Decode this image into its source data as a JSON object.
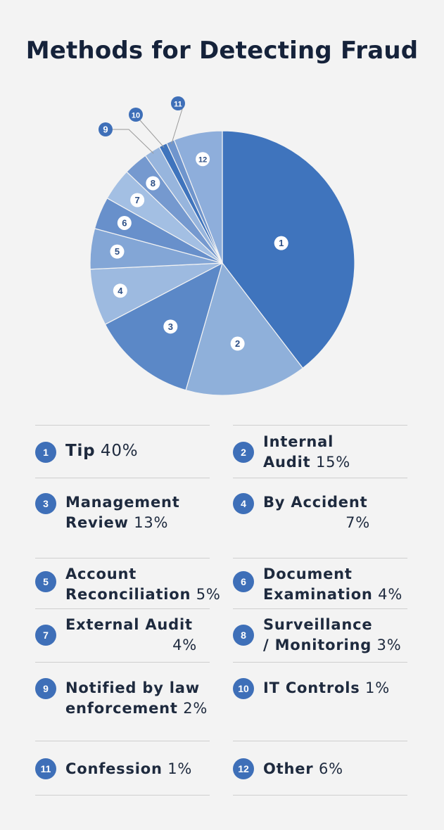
{
  "title": "Methods for Detecting Fraud",
  "colors": {
    "badge": "#3e6fb8",
    "label_text": "#1e2a3e",
    "background": "#f3f3f3"
  },
  "chart_data": {
    "type": "pie",
    "title": "Methods for Detecting Fraud",
    "slices": [
      {
        "label": "1",
        "name": "Tip",
        "value": 40,
        "color": "#3f74bd"
      },
      {
        "label": "2",
        "name": "Internal Audit",
        "value": 15,
        "color": "#8fb0da"
      },
      {
        "label": "3",
        "name": "Management Review",
        "value": 13,
        "color": "#5b88c7"
      },
      {
        "label": "4",
        "name": "By Accident",
        "value": 7,
        "color": "#9dbae0"
      },
      {
        "label": "5",
        "name": "Account Reconciliation",
        "value": 5,
        "color": "#83a6d6"
      },
      {
        "label": "6",
        "name": "Document Examination",
        "value": 4,
        "color": "#6890cb"
      },
      {
        "label": "7",
        "name": "External Audit",
        "value": 4,
        "color": "#a3bfe3"
      },
      {
        "label": "8",
        "name": "Surveillance / Monitoring",
        "value": 3,
        "color": "#7599cf"
      },
      {
        "label": "9",
        "name": "Notified by law enforcement",
        "value": 2,
        "color": "#97b5dd"
      },
      {
        "label": "10",
        "name": "IT Controls",
        "value": 1,
        "color": "#3f74bd"
      },
      {
        "label": "11",
        "name": "Confession",
        "value": 1,
        "color": "#6f95cd"
      },
      {
        "label": "12",
        "name": "Other",
        "value": 6,
        "color": "#8eaedb"
      }
    ]
  },
  "legend": [
    {
      "num": "1",
      "line1": "Tip",
      "pct": "40%"
    },
    {
      "num": "2",
      "line1": "Internal",
      "line2": "Audit",
      "pct": "15%"
    },
    {
      "num": "3",
      "line1": "Management",
      "line2": "Review",
      "pct": "13%"
    },
    {
      "num": "4",
      "line1": "By Accident",
      "pct": "7%"
    },
    {
      "num": "5",
      "line1": "Account",
      "line2": "Reconciliation",
      "pct": "5%"
    },
    {
      "num": "6",
      "line1": "Document",
      "line2": "Examination",
      "pct": "4%"
    },
    {
      "num": "7",
      "line1": "External Audit",
      "pct": "4%"
    },
    {
      "num": "8",
      "line1": "Surveillance",
      "line2": "/ Monitoring",
      "pct": "3%"
    },
    {
      "num": "9",
      "line1": "Notified by law",
      "line2": "enforcement",
      "pct": "2%"
    },
    {
      "num": "10",
      "line1": "IT Controls",
      "pct": "1%"
    },
    {
      "num": "11",
      "line1": "Confession",
      "pct": "1%"
    },
    {
      "num": "12",
      "line1": "Other",
      "pct": "6%"
    }
  ]
}
